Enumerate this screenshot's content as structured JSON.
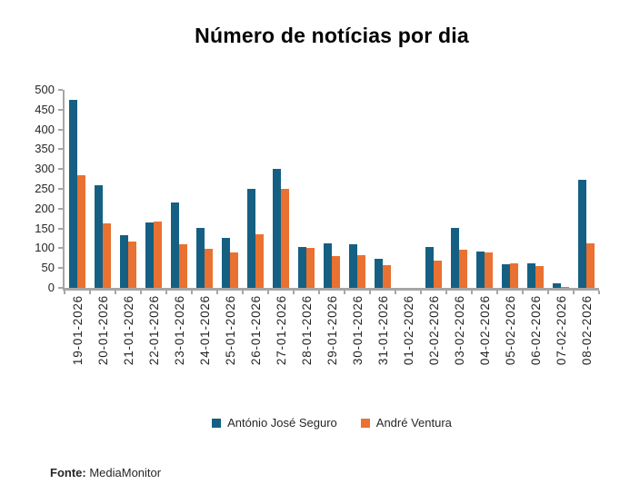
{
  "title": "Número de notícias por dia",
  "footer": {
    "label": "Fonte:",
    "value": " MediaMonitor"
  },
  "colors": {
    "series_antonio": "#156082",
    "series_andre": "#E97132",
    "axis": "#A6A6A6",
    "text": "#262626"
  },
  "chart_data": {
    "type": "bar",
    "title": "Número de notícias por dia",
    "xlabel": "",
    "ylabel": "",
    "categories": [
      "19-01-2026",
      "20-01-2026",
      "21-01-2026",
      "22-01-2026",
      "23-01-2026",
      "24-01-2026",
      "25-01-2026",
      "26-01-2026",
      "27-01-2026",
      "28-01-2026",
      "29-01-2026",
      "30-01-2026",
      "31-01-2026",
      "01-02-2026",
      "02-02-2026",
      "03-02-2026",
      "04-02-2026",
      "05-02-2026",
      "06-02-2026",
      "07-02-2026",
      "08-02-2026"
    ],
    "series": [
      {
        "name": "António José Seguro",
        "color": "#156082",
        "values": [
          475,
          260,
          133,
          164,
          215,
          151,
          126,
          250,
          300,
          103,
          112,
          109,
          73,
          0,
          103,
          151,
          92,
          60,
          61,
          12,
          274
        ]
      },
      {
        "name": "André Ventura",
        "color": "#E97132",
        "values": [
          285,
          163,
          116,
          167,
          111,
          99,
          89,
          135,
          249,
          100,
          80,
          83,
          57,
          0,
          69,
          96,
          90,
          63,
          56,
          3,
          112
        ]
      }
    ],
    "ylim": [
      0,
      500
    ],
    "yticks": [
      0,
      50,
      100,
      150,
      200,
      250,
      300,
      350,
      400,
      450,
      500
    ],
    "grid": false,
    "legend_position": "bottom"
  }
}
